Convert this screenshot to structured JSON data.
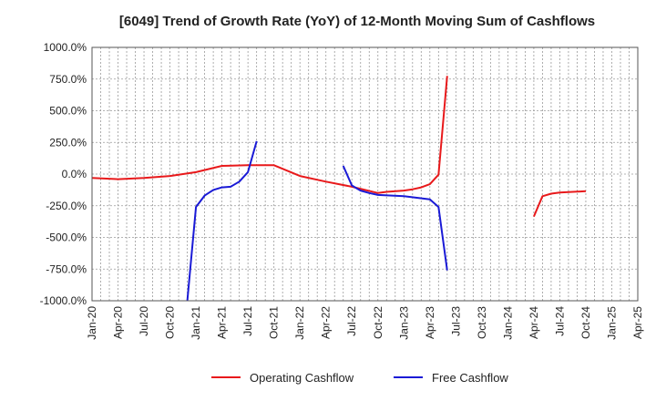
{
  "chart_data": {
    "type": "line",
    "title": "[6049]  Trend of Growth Rate (YoY) of 12-Month Moving Sum of Cashflows",
    "xlabel": "",
    "ylabel": "",
    "ylim": [
      -1000,
      1000
    ],
    "y_ticks": [
      "1000.0%",
      "750.0%",
      "500.0%",
      "250.0%",
      "0.0%",
      "-250.0%",
      "-500.0%",
      "-750.0%",
      "-1000.0%"
    ],
    "x_ticks": [
      "Jan-20",
      "Apr-20",
      "Jul-20",
      "Oct-20",
      "Jan-21",
      "Apr-21",
      "Jul-21",
      "Oct-21",
      "Jan-22",
      "Apr-22",
      "Jul-22",
      "Oct-22",
      "Jan-23",
      "Apr-23",
      "Jul-23",
      "Oct-23",
      "Jan-24",
      "Apr-24",
      "Jul-24",
      "Oct-24",
      "Jan-25",
      "Apr-25"
    ],
    "x_range": [
      "2020-01",
      "2025-04"
    ],
    "grid": true,
    "legend_position": "bottom",
    "series": [
      {
        "name": "Operating Cashflow",
        "color": "#e8191b",
        "points": [
          [
            "2020-01",
            -30
          ],
          [
            "2020-04",
            -40
          ],
          [
            "2020-07",
            -30
          ],
          [
            "2020-10",
            -15
          ],
          [
            "2021-01",
            15
          ],
          [
            "2021-04",
            65
          ],
          [
            "2021-07",
            70
          ],
          [
            "2021-10",
            70
          ],
          [
            "2022-01",
            -15
          ],
          [
            "2022-04",
            -60
          ],
          [
            "2022-07",
            -100
          ],
          [
            "2022-10",
            -150
          ],
          [
            "2022-11",
            -140
          ],
          [
            "2023-01",
            -130
          ],
          [
            "2023-02",
            -120
          ],
          [
            "2023-03",
            -105
          ],
          [
            "2023-04",
            -80
          ],
          [
            "2023-05",
            -5
          ],
          [
            "2023-06",
            775
          ]
        ],
        "points_segment_2": [
          [
            "2024-04",
            -335
          ],
          [
            "2024-05",
            -175
          ],
          [
            "2024-06",
            -155
          ],
          [
            "2024-07",
            -145
          ],
          [
            "2024-10",
            -135
          ]
        ]
      },
      {
        "name": "Free Cashflow",
        "color": "#1a1ad6",
        "points": [
          [
            "2020-12",
            -1000
          ],
          [
            "2021-01",
            -260
          ],
          [
            "2021-02",
            -170
          ],
          [
            "2021-03",
            -125
          ],
          [
            "2021-04",
            -105
          ],
          [
            "2021-05",
            -100
          ],
          [
            "2021-06",
            -60
          ],
          [
            "2021-07",
            15
          ],
          [
            "2021-08",
            260
          ]
        ],
        "points_segment_2": [
          [
            "2022-06",
            65
          ],
          [
            "2022-07",
            -90
          ],
          [
            "2022-08",
            -130
          ],
          [
            "2022-09",
            -150
          ],
          [
            "2022-10",
            -165
          ],
          [
            "2023-01",
            -175
          ],
          [
            "2023-04",
            -200
          ],
          [
            "2023-05",
            -260
          ],
          [
            "2023-06",
            -760
          ]
        ]
      }
    ]
  }
}
